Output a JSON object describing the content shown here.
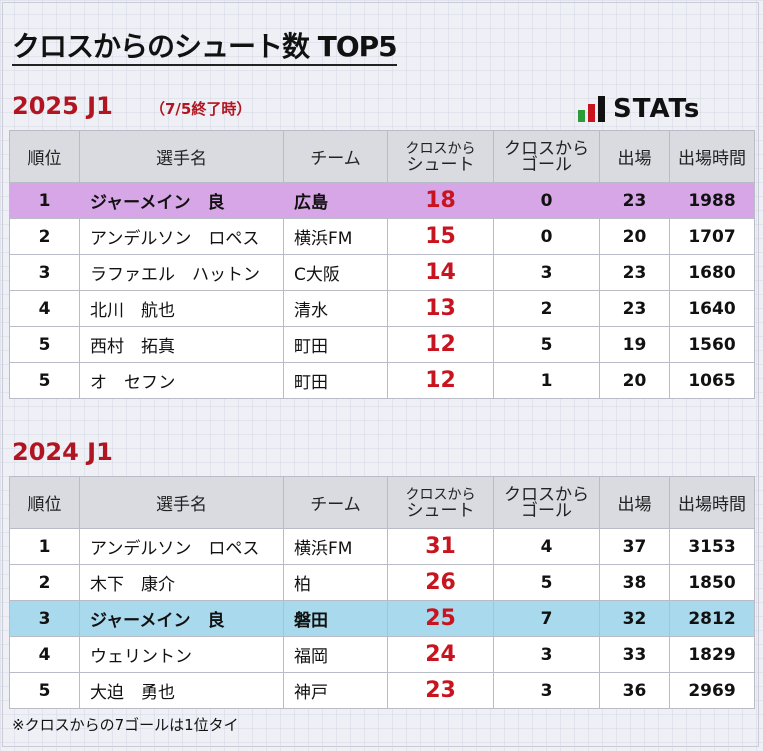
{
  "title": "クロスからのシュート数 TOP5",
  "logo": {
    "text": "STATs",
    "bar_colors": [
      "#2e9b3a",
      "#c8141f",
      "#111111"
    ]
  },
  "headers": {
    "rank": "順位",
    "name": "選手名",
    "team": "チーム",
    "shot_line1": "クロスから",
    "shot_line2": "シュート",
    "goal_line1": "クロスから",
    "goal_line2": "ゴール",
    "apps": "出場",
    "minutes": "出場時間"
  },
  "sections": [
    {
      "title": "2025 J1",
      "subtitle": "（7/5終了時）",
      "rows": [
        {
          "rank": "1",
          "name": "ジャーメイン　良",
          "team": "広島",
          "shots": "18",
          "goals": "0",
          "apps": "23",
          "minutes": "1988",
          "highlight": "purple"
        },
        {
          "rank": "2",
          "name": "アンデルソン　ロペス",
          "team": "横浜FM",
          "shots": "15",
          "goals": "0",
          "apps": "20",
          "minutes": "1707"
        },
        {
          "rank": "3",
          "name": "ラファエル　ハットン",
          "team": "C大阪",
          "shots": "14",
          "goals": "3",
          "apps": "23",
          "minutes": "1680"
        },
        {
          "rank": "4",
          "name": "北川　航也",
          "team": "清水",
          "shots": "13",
          "goals": "2",
          "apps": "23",
          "minutes": "1640"
        },
        {
          "rank": "5",
          "name": "西村　拓真",
          "team": "町田",
          "shots": "12",
          "goals": "5",
          "apps": "19",
          "minutes": "1560"
        },
        {
          "rank": "5",
          "name": "オ　セフン",
          "team": "町田",
          "shots": "12",
          "goals": "1",
          "apps": "20",
          "minutes": "1065"
        }
      ]
    },
    {
      "title": "2024 J1",
      "rows": [
        {
          "rank": "1",
          "name": "アンデルソン　ロペス",
          "team": "横浜FM",
          "shots": "31",
          "goals": "4",
          "apps": "37",
          "minutes": "3153"
        },
        {
          "rank": "2",
          "name": "木下　康介",
          "team": "柏",
          "shots": "26",
          "goals": "5",
          "apps": "38",
          "minutes": "1850"
        },
        {
          "rank": "3",
          "name": "ジャーメイン　良",
          "team": "磐田",
          "shots": "25",
          "goals": "7",
          "apps": "32",
          "minutes": "2812",
          "highlight": "blue"
        },
        {
          "rank": "4",
          "name": "ウェリントン",
          "team": "福岡",
          "shots": "24",
          "goals": "3",
          "apps": "33",
          "minutes": "1829"
        },
        {
          "rank": "5",
          "name": "大迫　勇也",
          "team": "神戸",
          "shots": "23",
          "goals": "3",
          "apps": "36",
          "minutes": "2969"
        }
      ]
    }
  ],
  "footnote": "※クロスからの7ゴールは1位タイ"
}
